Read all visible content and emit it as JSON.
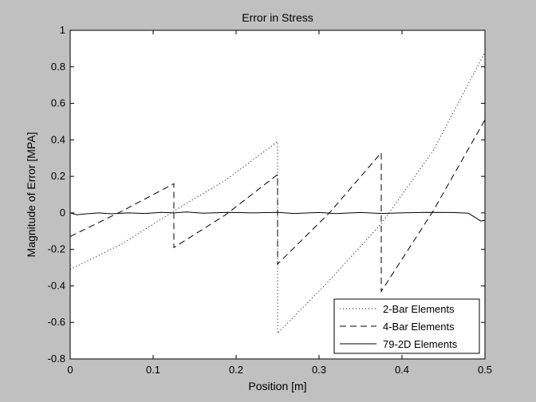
{
  "chart_data": {
    "type": "line",
    "title": "Error in Stress",
    "xlabel": "Position [m]",
    "ylabel": "Magnitude of Error [MPA]",
    "xlim": [
      0,
      0.5
    ],
    "ylim": [
      -0.8,
      1
    ],
    "xticks": [
      0,
      0.1,
      0.2,
      0.3,
      0.4,
      0.5
    ],
    "xtick_labels": [
      "0",
      "0.1",
      "0.2",
      "0.3",
      "0.4",
      "0.5"
    ],
    "yticks": [
      -0.8,
      -0.6,
      -0.4,
      -0.2,
      0,
      0.2,
      0.4,
      0.6,
      0.8,
      1
    ],
    "ytick_labels": [
      "-0.8",
      "-0.6",
      "-0.4",
      "-0.2",
      "0",
      "0.2",
      "0.4",
      "0.6",
      "0.8",
      "1"
    ],
    "grid": false,
    "legend_position": "bottom-right",
    "series": [
      {
        "name": "2-Bar Elements",
        "style": "dotted",
        "segments": [
          [
            [
              0,
              -0.31
            ],
            [
              0.0625,
              -0.17
            ],
            [
              0.125,
              0.01
            ],
            [
              0.1875,
              0.18
            ],
            [
              0.25,
              0.39
            ]
          ],
          [
            [
              0.25,
              0.39
            ],
            [
              0.25,
              -0.66
            ]
          ],
          [
            [
              0.25,
              -0.66
            ],
            [
              0.3125,
              -0.37
            ],
            [
              0.375,
              -0.06
            ],
            [
              0.4375,
              0.34
            ],
            [
              0.5,
              0.88
            ]
          ]
        ]
      },
      {
        "name": "4-Bar Elements",
        "style": "dashed",
        "segments": [
          [
            [
              0,
              -0.13
            ],
            [
              0.0625,
              0.01
            ],
            [
              0.125,
              0.16
            ]
          ],
          [
            [
              0.125,
              0.16
            ],
            [
              0.125,
              -0.19
            ]
          ],
          [
            [
              0.125,
              -0.19
            ],
            [
              0.1875,
              -0.01
            ],
            [
              0.25,
              0.21
            ]
          ],
          [
            [
              0.25,
              0.21
            ],
            [
              0.25,
              -0.28
            ]
          ],
          [
            [
              0.25,
              -0.28
            ],
            [
              0.3125,
              0.0
            ],
            [
              0.375,
              0.33
            ]
          ],
          [
            [
              0.375,
              0.33
            ],
            [
              0.375,
              -0.43
            ]
          ],
          [
            [
              0.375,
              -0.43
            ],
            [
              0.4375,
              0.01
            ],
            [
              0.5,
              0.51
            ]
          ]
        ]
      },
      {
        "name": "79-2D Elements",
        "style": "solid",
        "segments": [
          [
            [
              0,
              0.0
            ],
            [
              0.008,
              -0.01
            ],
            [
              0.02,
              -0.005
            ],
            [
              0.035,
              0.0
            ],
            [
              0.05,
              -0.005
            ],
            [
              0.07,
              0.0
            ],
            [
              0.09,
              -0.003
            ],
            [
              0.11,
              0.003
            ],
            [
              0.125,
              0.0
            ],
            [
              0.14,
              0.005
            ],
            [
              0.16,
              -0.002
            ],
            [
              0.19,
              0.003
            ],
            [
              0.22,
              0.0
            ],
            [
              0.25,
              0.003
            ],
            [
              0.27,
              -0.003
            ],
            [
              0.3,
              0.002
            ],
            [
              0.32,
              -0.004
            ],
            [
              0.35,
              0.002
            ],
            [
              0.375,
              -0.003
            ],
            [
              0.4,
              0.0
            ],
            [
              0.43,
              0.003
            ],
            [
              0.46,
              0.002
            ],
            [
              0.48,
              -0.002
            ],
            [
              0.49,
              -0.03
            ],
            [
              0.495,
              -0.045
            ],
            [
              0.5,
              -0.04
            ]
          ]
        ]
      }
    ]
  }
}
